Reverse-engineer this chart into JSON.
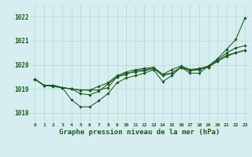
{
  "background_color": "#d6eef0",
  "grid_color": "#b8d4d8",
  "line_color": "#1a5c1a",
  "marker_color": "#1a5c1a",
  "title": "Graphe pression niveau de la mer (hPa)",
  "title_fontsize": 6.5,
  "ylabel_ticks": [
    1018,
    1019,
    1020,
    1021,
    1022
  ],
  "ytick_fontsize": 5.5,
  "xtick_fontsize": 4.5,
  "xlim": [
    -0.5,
    23.5
  ],
  "ylim": [
    1017.6,
    1022.5
  ],
  "series1": [
    1019.4,
    1019.15,
    1019.15,
    1019.05,
    1018.55,
    1018.25,
    1018.25,
    1018.5,
    1018.8,
    1019.25,
    1019.45,
    1019.55,
    1019.65,
    1019.8,
    1019.3,
    1019.55,
    1019.9,
    1019.65,
    1019.65,
    1019.95,
    1020.25,
    1020.65,
    1021.05,
    1021.95
  ],
  "series2": [
    1019.4,
    1019.15,
    1019.15,
    1019.05,
    1019.0,
    1018.8,
    1018.75,
    1018.9,
    1019.2,
    1019.5,
    1019.65,
    1019.7,
    1019.75,
    1019.85,
    1019.55,
    1019.65,
    1019.9,
    1019.75,
    1019.8,
    1019.9,
    1020.15,
    1020.35,
    1020.5,
    1020.6
  ],
  "series3": [
    1019.4,
    1019.15,
    1019.1,
    1019.05,
    1019.0,
    1018.95,
    1018.95,
    1018.95,
    1019.05,
    1019.5,
    1019.6,
    1019.75,
    1019.8,
    1019.85,
    1019.6,
    1019.65,
    1019.9,
    1019.8,
    1019.8,
    1019.9,
    1020.15,
    1020.4,
    1020.5,
    1020.6
  ],
  "series4": [
    1019.4,
    1019.15,
    1019.1,
    1019.05,
    1019.0,
    1018.95,
    1018.95,
    1019.1,
    1019.25,
    1019.55,
    1019.7,
    1019.8,
    1019.85,
    1019.9,
    1019.6,
    1019.8,
    1019.95,
    1019.8,
    1019.85,
    1019.95,
    1020.2,
    1020.5,
    1020.7,
    1020.8
  ],
  "xtick_labels": [
    "0",
    "1",
    "2",
    "3",
    "4",
    "5",
    "6",
    "7",
    "8",
    "9",
    "10",
    "11",
    "12",
    "13",
    "14",
    "15",
    "16",
    "17",
    "18",
    "19",
    "20",
    "21",
    "22",
    "23"
  ]
}
